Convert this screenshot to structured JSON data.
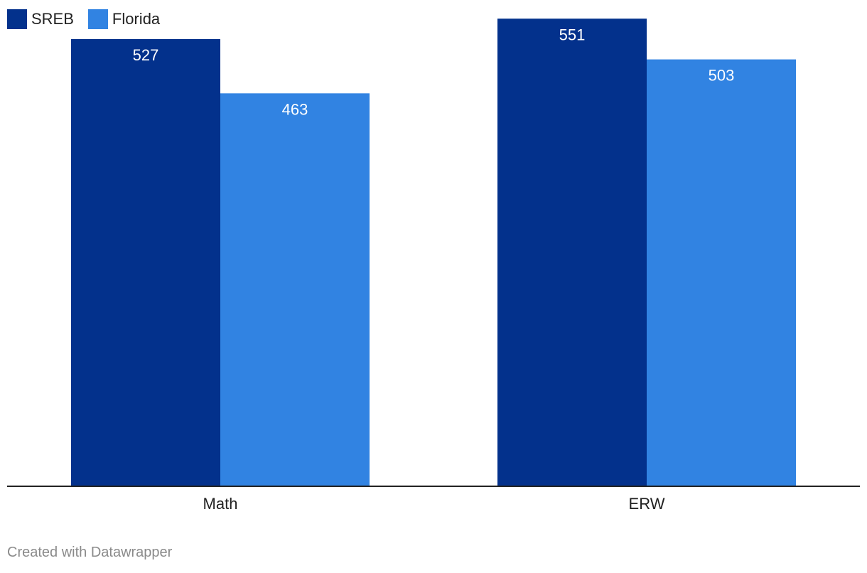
{
  "chart_data": {
    "type": "bar",
    "categories": [
      "Math",
      "ERW"
    ],
    "series": [
      {
        "name": "SREB",
        "values": [
          527,
          551
        ],
        "color": "#03318c"
      },
      {
        "name": "Florida",
        "values": [
          463,
          503
        ],
        "color": "#3183e2"
      }
    ],
    "ylim": [
      0,
      573
    ],
    "grid": false,
    "legend": "top-left",
    "data_labels": true
  },
  "legend": {
    "items": [
      {
        "label": "SREB",
        "color": "#03318c"
      },
      {
        "label": "Florida",
        "color": "#3183e2"
      }
    ]
  },
  "footer": {
    "credit": "Created with Datawrapper"
  }
}
